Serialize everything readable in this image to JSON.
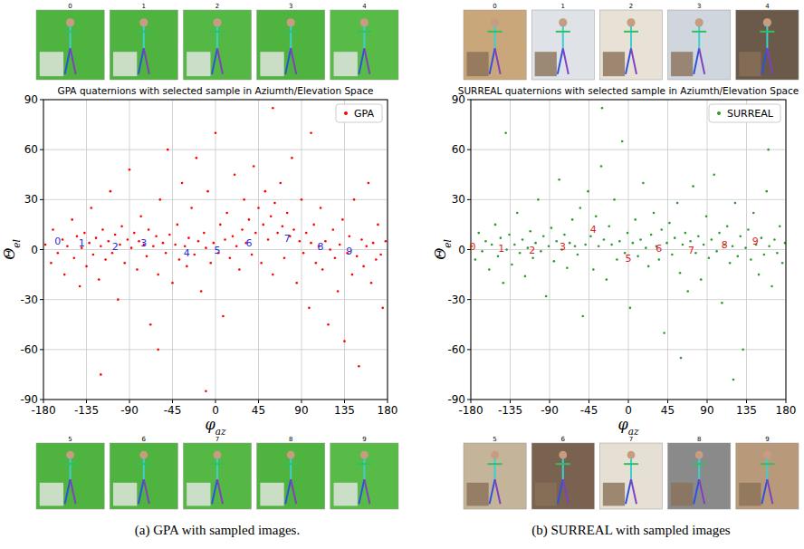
{
  "chart_data": [
    {
      "type": "scatter",
      "title": "GPA quaternions with selected sample in Aziumth/Elevation Space",
      "xlabel": "φaz",
      "ylabel": "Θel",
      "caption": "(a) GPA with sampled images.",
      "xlim": [
        -180,
        180
      ],
      "ylim": [
        -90,
        90
      ],
      "xticks": [
        -180,
        -135,
        -90,
        -45,
        0,
        45,
        90,
        135,
        180
      ],
      "yticks": [
        -90,
        -60,
        -30,
        0,
        30,
        60,
        90
      ],
      "grid": true,
      "legend": "upper right",
      "thumbnails_top": [
        0,
        1,
        2,
        3,
        4
      ],
      "thumbnails_bottom": [
        5,
        6,
        7,
        8,
        9
      ],
      "series": [
        {
          "name": "GPA",
          "color": "#ff0000",
          "marker": "dot",
          "x": [
            -178,
            -172,
            -170,
            -165,
            -160,
            -158,
            -155,
            -150,
            -148,
            -145,
            -142,
            -140,
            -137,
            -135,
            -132,
            -130,
            -128,
            -125,
            -122,
            -120,
            -118,
            -115,
            -112,
            -110,
            -108,
            -105,
            -102,
            -100,
            -98,
            -95,
            -92,
            -90,
            -88,
            -85,
            -82,
            -80,
            -78,
            -75,
            -72,
            -70,
            -68,
            -65,
            -62,
            -60,
            -58,
            -55,
            -52,
            -50,
            -48,
            -45,
            -42,
            -40,
            -38,
            -35,
            -32,
            -30,
            -28,
            -25,
            -22,
            -20,
            -18,
            -15,
            -12,
            -10,
            -8,
            -5,
            -2,
            0,
            3,
            5,
            8,
            10,
            12,
            15,
            18,
            20,
            22,
            25,
            28,
            30,
            32,
            35,
            38,
            40,
            42,
            45,
            48,
            50,
            52,
            55,
            58,
            60,
            62,
            65,
            68,
            70,
            72,
            75,
            78,
            80,
            82,
            85,
            88,
            90,
            92,
            95,
            98,
            100,
            103,
            105,
            108,
            110,
            112,
            115,
            118,
            120,
            123,
            125,
            128,
            130,
            133,
            135,
            138,
            140,
            143,
            145,
            148,
            150,
            153,
            155,
            158,
            160,
            163,
            165,
            168,
            170,
            173,
            175,
            178,
            -120,
            60,
            -60,
            100,
            -10
          ],
          "values": [
            3,
            -8,
            12,
            -2,
            6,
            -15,
            2,
            18,
            -5,
            8,
            -22,
            1,
            10,
            -10,
            4,
            25,
            -3,
            7,
            -18,
            2,
            12,
            -6,
            5,
            35,
            -2,
            9,
            -30,
            3,
            14,
            -8,
            6,
            48,
            1,
            10,
            -12,
            5,
            20,
            3,
            -4,
            12,
            -45,
            2,
            8,
            -15,
            30,
            4,
            -2,
            60,
            9,
            -20,
            3,
            15,
            -6,
            40,
            2,
            -10,
            7,
            25,
            -3,
            55,
            5,
            -25,
            10,
            1,
            35,
            -8,
            4,
            70,
            -2,
            15,
            -40,
            6,
            22,
            -5,
            8,
            45,
            2,
            -12,
            12,
            30,
            4,
            18,
            -3,
            50,
            10,
            25,
            -8,
            15,
            35,
            6,
            20,
            -15,
            28,
            10,
            40,
            14,
            -5,
            22,
            8,
            55,
            12,
            -20,
            5,
            30,
            -2,
            10,
            -35,
            4,
            15,
            -8,
            2,
            25,
            -12,
            5,
            -45,
            0,
            12,
            -5,
            -25,
            3,
            18,
            -55,
            -2,
            8,
            -15,
            30,
            -4,
            -70,
            6,
            -10,
            2,
            40,
            -20,
            4,
            -6,
            15,
            -3,
            -35,
            5,
            -75,
            85,
            -60,
            70,
            -85
          ]
        }
      ],
      "annotations": [
        {
          "text": "0",
          "x": -165,
          "y": 5,
          "color": "#2b2bd6"
        },
        {
          "text": "1",
          "x": -140,
          "y": 4,
          "color": "#2b2bd6"
        },
        {
          "text": "2",
          "x": -105,
          "y": 2,
          "color": "#2b2bd6"
        },
        {
          "text": "3",
          "x": -75,
          "y": 4,
          "color": "#2b2bd6"
        },
        {
          "text": "4",
          "x": -30,
          "y": -2,
          "color": "#2b2bd6"
        },
        {
          "text": "5",
          "x": 2,
          "y": 0,
          "color": "#2b2bd6"
        },
        {
          "text": "6",
          "x": 35,
          "y": 4,
          "color": "#2b2bd6"
        },
        {
          "text": "7",
          "x": 75,
          "y": 7,
          "color": "#2b2bd6"
        },
        {
          "text": "8",
          "x": 110,
          "y": 2,
          "color": "#2b2bd6"
        },
        {
          "text": "9",
          "x": 140,
          "y": -1,
          "color": "#2b2bd6"
        }
      ]
    },
    {
      "type": "scatter",
      "title": "SURREAL quaternions with selected sample in Aziumth/Elevation Space",
      "xlabel": "φaz",
      "ylabel": "Θel",
      "caption": "(b) SURREAL with sampled images",
      "xlim": [
        -180,
        180
      ],
      "ylim": [
        -90,
        90
      ],
      "xticks": [
        -180,
        -135,
        -90,
        -45,
        0,
        45,
        90,
        135,
        180
      ],
      "yticks": [
        -90,
        -60,
        -30,
        0,
        30,
        60,
        90
      ],
      "grid": true,
      "legend": "upper right",
      "thumbnails_top": [
        0,
        1,
        2,
        3,
        4
      ],
      "thumbnails_bottom": [
        5,
        6,
        7,
        8,
        9
      ],
      "series": [
        {
          "name": "SURREAL",
          "color": "#2e9a2e",
          "marker": "dot",
          "x": [
            -179,
            -175,
            -171,
            -167,
            -163,
            -159,
            -156,
            -152,
            -149,
            -146,
            -143,
            -139,
            -136,
            -133,
            -130,
            -127,
            -124,
            -121,
            -118,
            -115,
            -112,
            -109,
            -106,
            -103,
            -100,
            -97,
            -94,
            -91,
            -88,
            -85,
            -82,
            -79,
            -76,
            -73,
            -70,
            -67,
            -64,
            -61,
            -58,
            -55,
            -52,
            -49,
            -46,
            -43,
            -40,
            -37,
            -34,
            -31,
            -28,
            -25,
            -22,
            -19,
            -16,
            -13,
            -10,
            -7,
            -4,
            -1,
            2,
            5,
            8,
            11,
            14,
            17,
            20,
            23,
            26,
            29,
            32,
            35,
            38,
            41,
            44,
            47,
            50,
            53,
            56,
            59,
            62,
            65,
            68,
            71,
            74,
            77,
            80,
            83,
            86,
            89,
            92,
            95,
            98,
            101,
            104,
            107,
            110,
            113,
            116,
            119,
            122,
            125,
            128,
            131,
            134,
            137,
            140,
            143,
            146,
            149,
            152,
            155,
            158,
            161,
            164,
            167,
            170,
            173,
            176,
            179,
            -140,
            120,
            -30,
            60,
            160
          ],
          "values": [
            2,
            -6,
            10,
            -1,
            5,
            -12,
            3,
            15,
            -4,
            7,
            -20,
            0,
            9,
            -9,
            3,
            22,
            -2,
            6,
            -16,
            1,
            11,
            -5,
            4,
            30,
            -1,
            8,
            -28,
            2,
            13,
            -7,
            5,
            42,
            0,
            9,
            -11,
            4,
            18,
            2,
            -3,
            25,
            -40,
            3,
            35,
            8,
            -12,
            20,
            2,
            50,
            6,
            -18,
            14,
            3,
            30,
            -6,
            5,
            65,
            -2,
            10,
            -35,
            4,
            18,
            -4,
            6,
            40,
            1,
            -10,
            9,
            22,
            2,
            -6,
            12,
            -50,
            4,
            16,
            -3,
            7,
            28,
            -14,
            3,
            10,
            -25,
            5,
            38,
            -2,
            8,
            -18,
            3,
            20,
            -5,
            6,
            45,
            -1,
            10,
            -32,
            3,
            14,
            -8,
            2,
            28,
            -4,
            8,
            -60,
            1,
            12,
            -6,
            22,
            3,
            -15,
            7,
            -3,
            35,
            2,
            -22,
            6,
            -2,
            14,
            -8,
            4,
            70,
            -78,
            85,
            -65,
            60
          ]
        }
      ],
      "annotations": [
        {
          "text": "0",
          "x": -178,
          "y": 2,
          "color": "#e02020"
        },
        {
          "text": "1",
          "x": -145,
          "y": 1,
          "color": "#e02020"
        },
        {
          "text": "2",
          "x": -110,
          "y": 0,
          "color": "#e02020"
        },
        {
          "text": "3",
          "x": -75,
          "y": 2,
          "color": "#e02020"
        },
        {
          "text": "4",
          "x": -40,
          "y": 12,
          "color": "#e02020"
        },
        {
          "text": "5",
          "x": 0,
          "y": -5,
          "color": "#e02020"
        },
        {
          "text": "6",
          "x": 35,
          "y": 1,
          "color": "#e02020"
        },
        {
          "text": "7",
          "x": 72,
          "y": 0,
          "color": "#e02020"
        },
        {
          "text": "8",
          "x": 110,
          "y": 3,
          "color": "#e02020"
        },
        {
          "text": "9",
          "x": 145,
          "y": 5,
          "color": "#e02020"
        }
      ]
    }
  ]
}
